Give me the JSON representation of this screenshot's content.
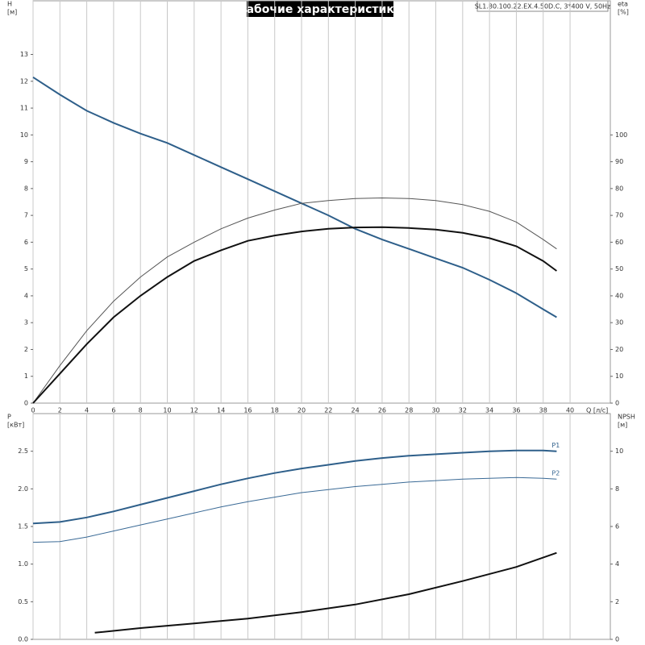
{
  "chart_data": [
    {
      "type": "line",
      "title": "Рабочие характеристики",
      "subtitle": "SL1.80.100.22.EX.4.50D.C, 3*400 V, 50Hz",
      "ylabel": "H",
      "yunit": "[м]",
      "y2label": "eta",
      "y2unit": "[%]",
      "xlabel": "Q [л/с]",
      "xlim": [
        0,
        43
      ],
      "xticks": [
        0,
        2,
        4,
        6,
        8,
        10,
        12,
        14,
        16,
        18,
        20,
        22,
        24,
        26,
        28,
        30,
        32,
        34,
        36,
        38,
        40
      ],
      "ylim": [
        0,
        15
      ],
      "yticks": [
        0,
        1,
        2,
        3,
        4,
        5,
        6,
        7,
        8,
        9,
        10,
        11,
        12,
        13
      ],
      "y2lim": [
        0,
        150
      ],
      "y2ticks": [
        0,
        10,
        20,
        30,
        40,
        50,
        60,
        70,
        80,
        90,
        100
      ],
      "grid": true,
      "series": [
        {
          "color": "#2e5f8a",
          "width": 2,
          "x": [
            0,
            2,
            4,
            6,
            8,
            10,
            12,
            14,
            16,
            18,
            20,
            22,
            24,
            26,
            28,
            30,
            32,
            34,
            36,
            38,
            39
          ],
          "values": [
            12.15,
            11.5,
            10.9,
            10.45,
            10.05,
            9.7,
            9.25,
            8.8,
            8.35,
            7.9,
            7.45,
            7.0,
            6.5,
            6.1,
            5.75,
            5.4,
            5.05,
            4.6,
            4.1,
            3.5,
            3.2
          ]
        },
        {
          "color": "#555555",
          "width": 1,
          "axis": "y2",
          "x": [
            0,
            2,
            4,
            6,
            8,
            10,
            12,
            14,
            16,
            18,
            20,
            22,
            24,
            26,
            28,
            30,
            32,
            34,
            36,
            38,
            39
          ],
          "values": [
            0,
            14,
            27,
            38,
            47,
            54.5,
            60,
            65,
            69,
            72,
            74.5,
            75.5,
            76.3,
            76.5,
            76.3,
            75.5,
            74,
            71.5,
            67.5,
            61,
            57.5
          ]
        },
        {
          "color": "#111111",
          "width": 2,
          "axis": "y2",
          "x": [
            0,
            2,
            4,
            6,
            8,
            10,
            12,
            14,
            16,
            18,
            20,
            22,
            24,
            26,
            28,
            30,
            32,
            34,
            36,
            38,
            39
          ],
          "values": [
            0,
            11,
            22,
            32,
            40,
            47,
            53,
            57,
            60.5,
            62.5,
            64,
            65,
            65.5,
            65.6,
            65.3,
            64.7,
            63.5,
            61.5,
            58.5,
            53,
            49.3
          ]
        }
      ]
    },
    {
      "type": "line",
      "ylabel": "P",
      "yunit": "[кВт]",
      "y2label": "NPSH",
      "y2unit": "[м]",
      "xlim": [
        0,
        43
      ],
      "xticks": [
        0,
        2,
        4,
        6,
        8,
        10,
        12,
        14,
        16,
        18,
        20,
        22,
        24,
        26,
        28,
        30,
        32,
        34,
        36,
        38,
        40
      ],
      "xticklabels": false,
      "ylim": [
        0,
        3.0
      ],
      "yticks": [
        {
          "value": 0,
          "label": "0.0"
        },
        0.5,
        {
          "value": 1,
          "label": "1.0"
        },
        1.5,
        {
          "value": 2,
          "label": "2.0"
        },
        2.5
      ],
      "y2lim": [
        0,
        12
      ],
      "y2ticks": [
        0,
        2,
        4,
        6,
        8,
        10
      ],
      "grid": true,
      "series": [
        {
          "name": "P1",
          "color": "#2e5f8a",
          "width": 2,
          "x": [
            0,
            2,
            4,
            6,
            8,
            10,
            12,
            14,
            16,
            18,
            20,
            22,
            24,
            26,
            28,
            30,
            32,
            34,
            36,
            38,
            39
          ],
          "values": [
            1.54,
            1.56,
            1.62,
            1.7,
            1.79,
            1.88,
            1.97,
            2.06,
            2.14,
            2.21,
            2.27,
            2.32,
            2.37,
            2.41,
            2.44,
            2.46,
            2.48,
            2.5,
            2.51,
            2.51,
            2.5
          ]
        },
        {
          "name": "P2",
          "color": "#3a6a96",
          "width": 1,
          "x": [
            0,
            2,
            4,
            6,
            8,
            10,
            12,
            14,
            16,
            18,
            20,
            22,
            24,
            26,
            28,
            30,
            32,
            34,
            36,
            38,
            39
          ],
          "values": [
            1.29,
            1.3,
            1.36,
            1.44,
            1.52,
            1.6,
            1.68,
            1.76,
            1.83,
            1.89,
            1.95,
            1.99,
            2.03,
            2.06,
            2.09,
            2.11,
            2.13,
            2.14,
            2.15,
            2.14,
            2.13
          ]
        },
        {
          "color": "#111111",
          "width": 2,
          "axis": "y2",
          "x": [
            4.6,
            8,
            12,
            16,
            20,
            24,
            28,
            32,
            36,
            39
          ],
          "values": [
            0.35,
            0.6,
            0.85,
            1.1,
            1.45,
            1.85,
            2.4,
            3.1,
            3.85,
            4.6
          ]
        }
      ]
    }
  ]
}
